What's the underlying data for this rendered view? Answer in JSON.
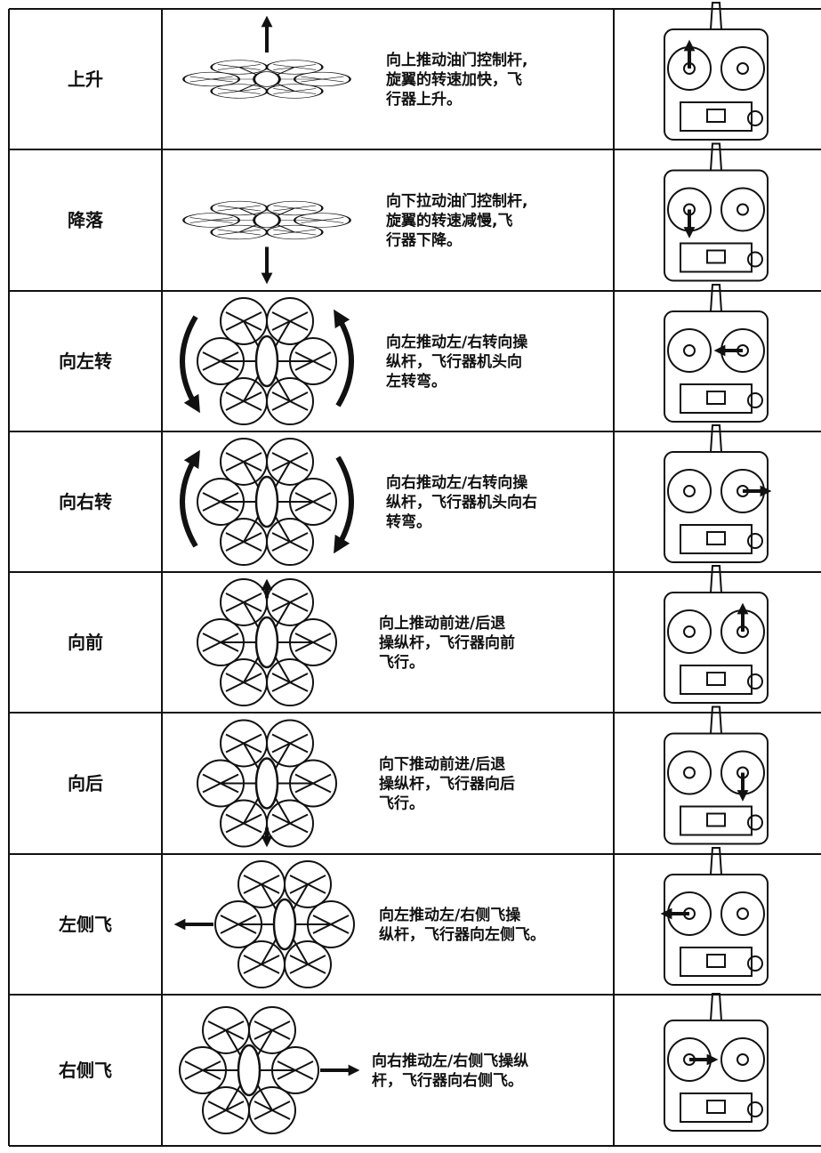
{
  "table": {
    "rows": [
      {
        "label": "上升",
        "description": [
          "向上推动油门控制杆,",
          "旋翼的转速加快，飞",
          "行器上升。"
        ]
      },
      {
        "label": "降落",
        "description": [
          "向下拉动油门控制杆,",
          "旋翼的转速减慢,飞",
          "行器下降。"
        ]
      },
      {
        "label": "向左转",
        "description": [
          "向左推动左/右转向操",
          "纵杆，飞行器机头向",
          "左转弯。"
        ]
      },
      {
        "label": "向右转",
        "description": [
          "向右推动左/右转向操",
          "纵杆，飞行器机头向右",
          "转弯。"
        ]
      },
      {
        "label": "向前",
        "description": [
          "向上推动前进/后退",
          "操纵杆，飞行器向前",
          "飞行。"
        ]
      },
      {
        "label": "向后",
        "description": [
          "向下推动前进/后退",
          "操纵杆，飞行器向后",
          "飞行。"
        ]
      },
      {
        "label": "左侧飞",
        "description": [
          "向左推动左/右侧飞操",
          "纵杆，飞行器向左侧飞。"
        ]
      },
      {
        "label": "右侧飞",
        "description": [
          "向右推动左/右侧飞操纵",
          "杆，飞行器向右侧飞。"
        ]
      }
    ]
  }
}
